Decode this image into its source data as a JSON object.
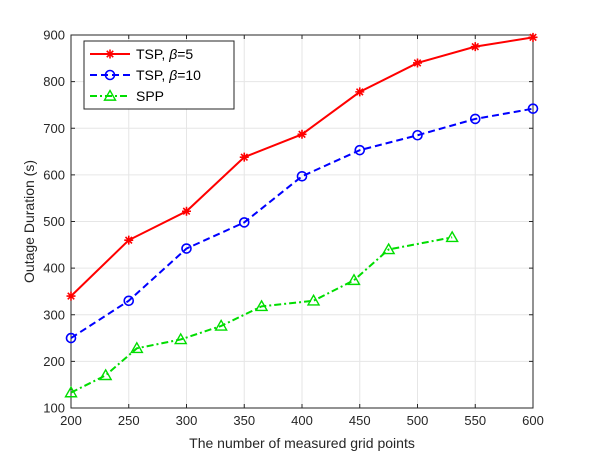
{
  "chart_data": {
    "type": "line",
    "xlabel": "The number of measured grid points",
    "ylabel": "Outage Duration (s)",
    "xlim": [
      200,
      600
    ],
    "ylim": [
      100,
      900
    ],
    "xticks": [
      200,
      250,
      300,
      350,
      400,
      450,
      500,
      550,
      600
    ],
    "yticks": [
      100,
      200,
      300,
      400,
      500,
      600,
      700,
      800,
      900
    ],
    "grid": true,
    "legend_position": "top-left",
    "series": [
      {
        "name_prefix": "TSP, ",
        "name_symbol": "β",
        "name_suffix": "=5",
        "color": "#ff0000",
        "line_style": "solid",
        "marker": "star",
        "x": [
          200,
          250,
          300,
          350,
          400,
          450,
          500,
          550,
          600
        ],
        "y": [
          340,
          460,
          522,
          638,
          687,
          778,
          840,
          875,
          895
        ]
      },
      {
        "name_prefix": "TSP, ",
        "name_symbol": "β",
        "name_suffix": "=10",
        "color": "#0000ff",
        "line_style": "dashed",
        "marker": "circle",
        "x": [
          200,
          250,
          300,
          350,
          400,
          450,
          500,
          550,
          600
        ],
        "y": [
          250,
          330,
          442,
          498,
          597,
          653,
          685,
          720,
          742
        ]
      },
      {
        "name_prefix": "SPP",
        "name_symbol": "",
        "name_suffix": "",
        "color": "#00dd00",
        "line_style": "dashdot",
        "marker": "triangle",
        "x": [
          200,
          230,
          257,
          295,
          330,
          365,
          410,
          445,
          475,
          530
        ],
        "y": [
          133,
          170,
          228,
          247,
          276,
          318,
          330,
          374,
          440,
          466
        ]
      }
    ]
  }
}
